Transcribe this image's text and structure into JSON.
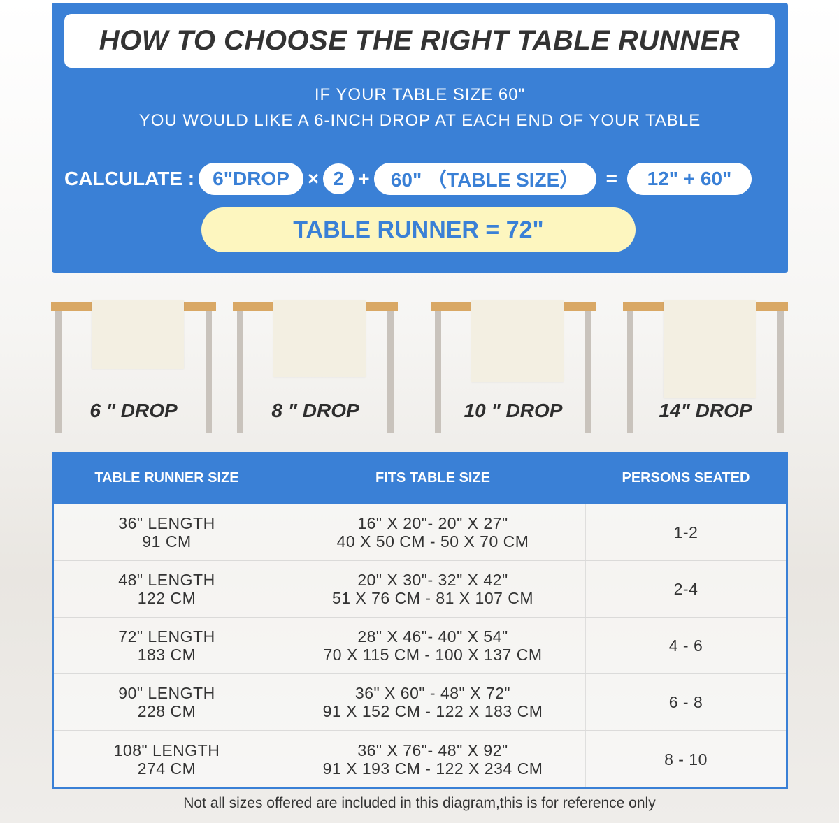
{
  "title": "HOW TO CHOOSE THE RIGHT TABLE RUNNER",
  "subtitle": [
    "IF YOUR TABLE SIZE 60\"",
    "YOU WOULD LIKE A 6-INCH DROP AT EACH END OF YOUR TABLE"
  ],
  "calc": {
    "label": "CALCULATE :",
    "drop": "6\"DROP",
    "times": "×",
    "multiplier": "2",
    "plus": "+",
    "table": "60\" （TABLE SIZE）",
    "equals": "=",
    "sum": "12\" + 60\"",
    "result": "TABLE RUNNER = 72\""
  },
  "drops": [
    {
      "label": "6 \" DROP",
      "inches": 6
    },
    {
      "label": "8 \" DROP",
      "inches": 8
    },
    {
      "label": "10 \" DROP",
      "inches": 10
    },
    {
      "label": "14\" DROP",
      "inches": 14
    }
  ],
  "table": {
    "headers": [
      "TABLE RUNNER SIZE",
      "FITS TABLE SIZE",
      "PERSONS SEATED"
    ],
    "rows": [
      {
        "size": [
          "36\" LENGTH",
          "91 CM"
        ],
        "fits": [
          "16\" X 20\"- 20\" X 27\"",
          "40 X 50 CM - 50 X 70 CM"
        ],
        "persons": "1-2"
      },
      {
        "size": [
          "48\" LENGTH",
          "122 CM"
        ],
        "fits": [
          "20\" X 30\"- 32\" X 42\"",
          "51 X 76 CM - 81 X 107 CM"
        ],
        "persons": "2-4"
      },
      {
        "size": [
          "72\" LENGTH",
          "183 CM"
        ],
        "fits": [
          "28\" X 46\"- 40\" X 54\"",
          "70 X 115 CM - 100 X 137 CM"
        ],
        "persons": "4 - 6"
      },
      {
        "size": [
          "90\" LENGTH",
          "228 CM"
        ],
        "fits": [
          "36\" X 60\" - 48\" X 72\"",
          "91 X 152 CM - 122 X 183 CM"
        ],
        "persons": "6 - 8"
      },
      {
        "size": [
          "108\" LENGTH",
          "274 CM"
        ],
        "fits": [
          "36\" X 76\"- 48\" X 92\"",
          "91 X 193 CM - 122 X 234 CM"
        ],
        "persons": "8 - 10"
      }
    ]
  },
  "footnote": "Not all sizes offered are included in this diagram,this is for reference only",
  "colors": {
    "blue": "#3a80d6",
    "result_bg": "#fdf6bf",
    "tabletop": "#d9a865",
    "runner": "#f3efe2"
  }
}
